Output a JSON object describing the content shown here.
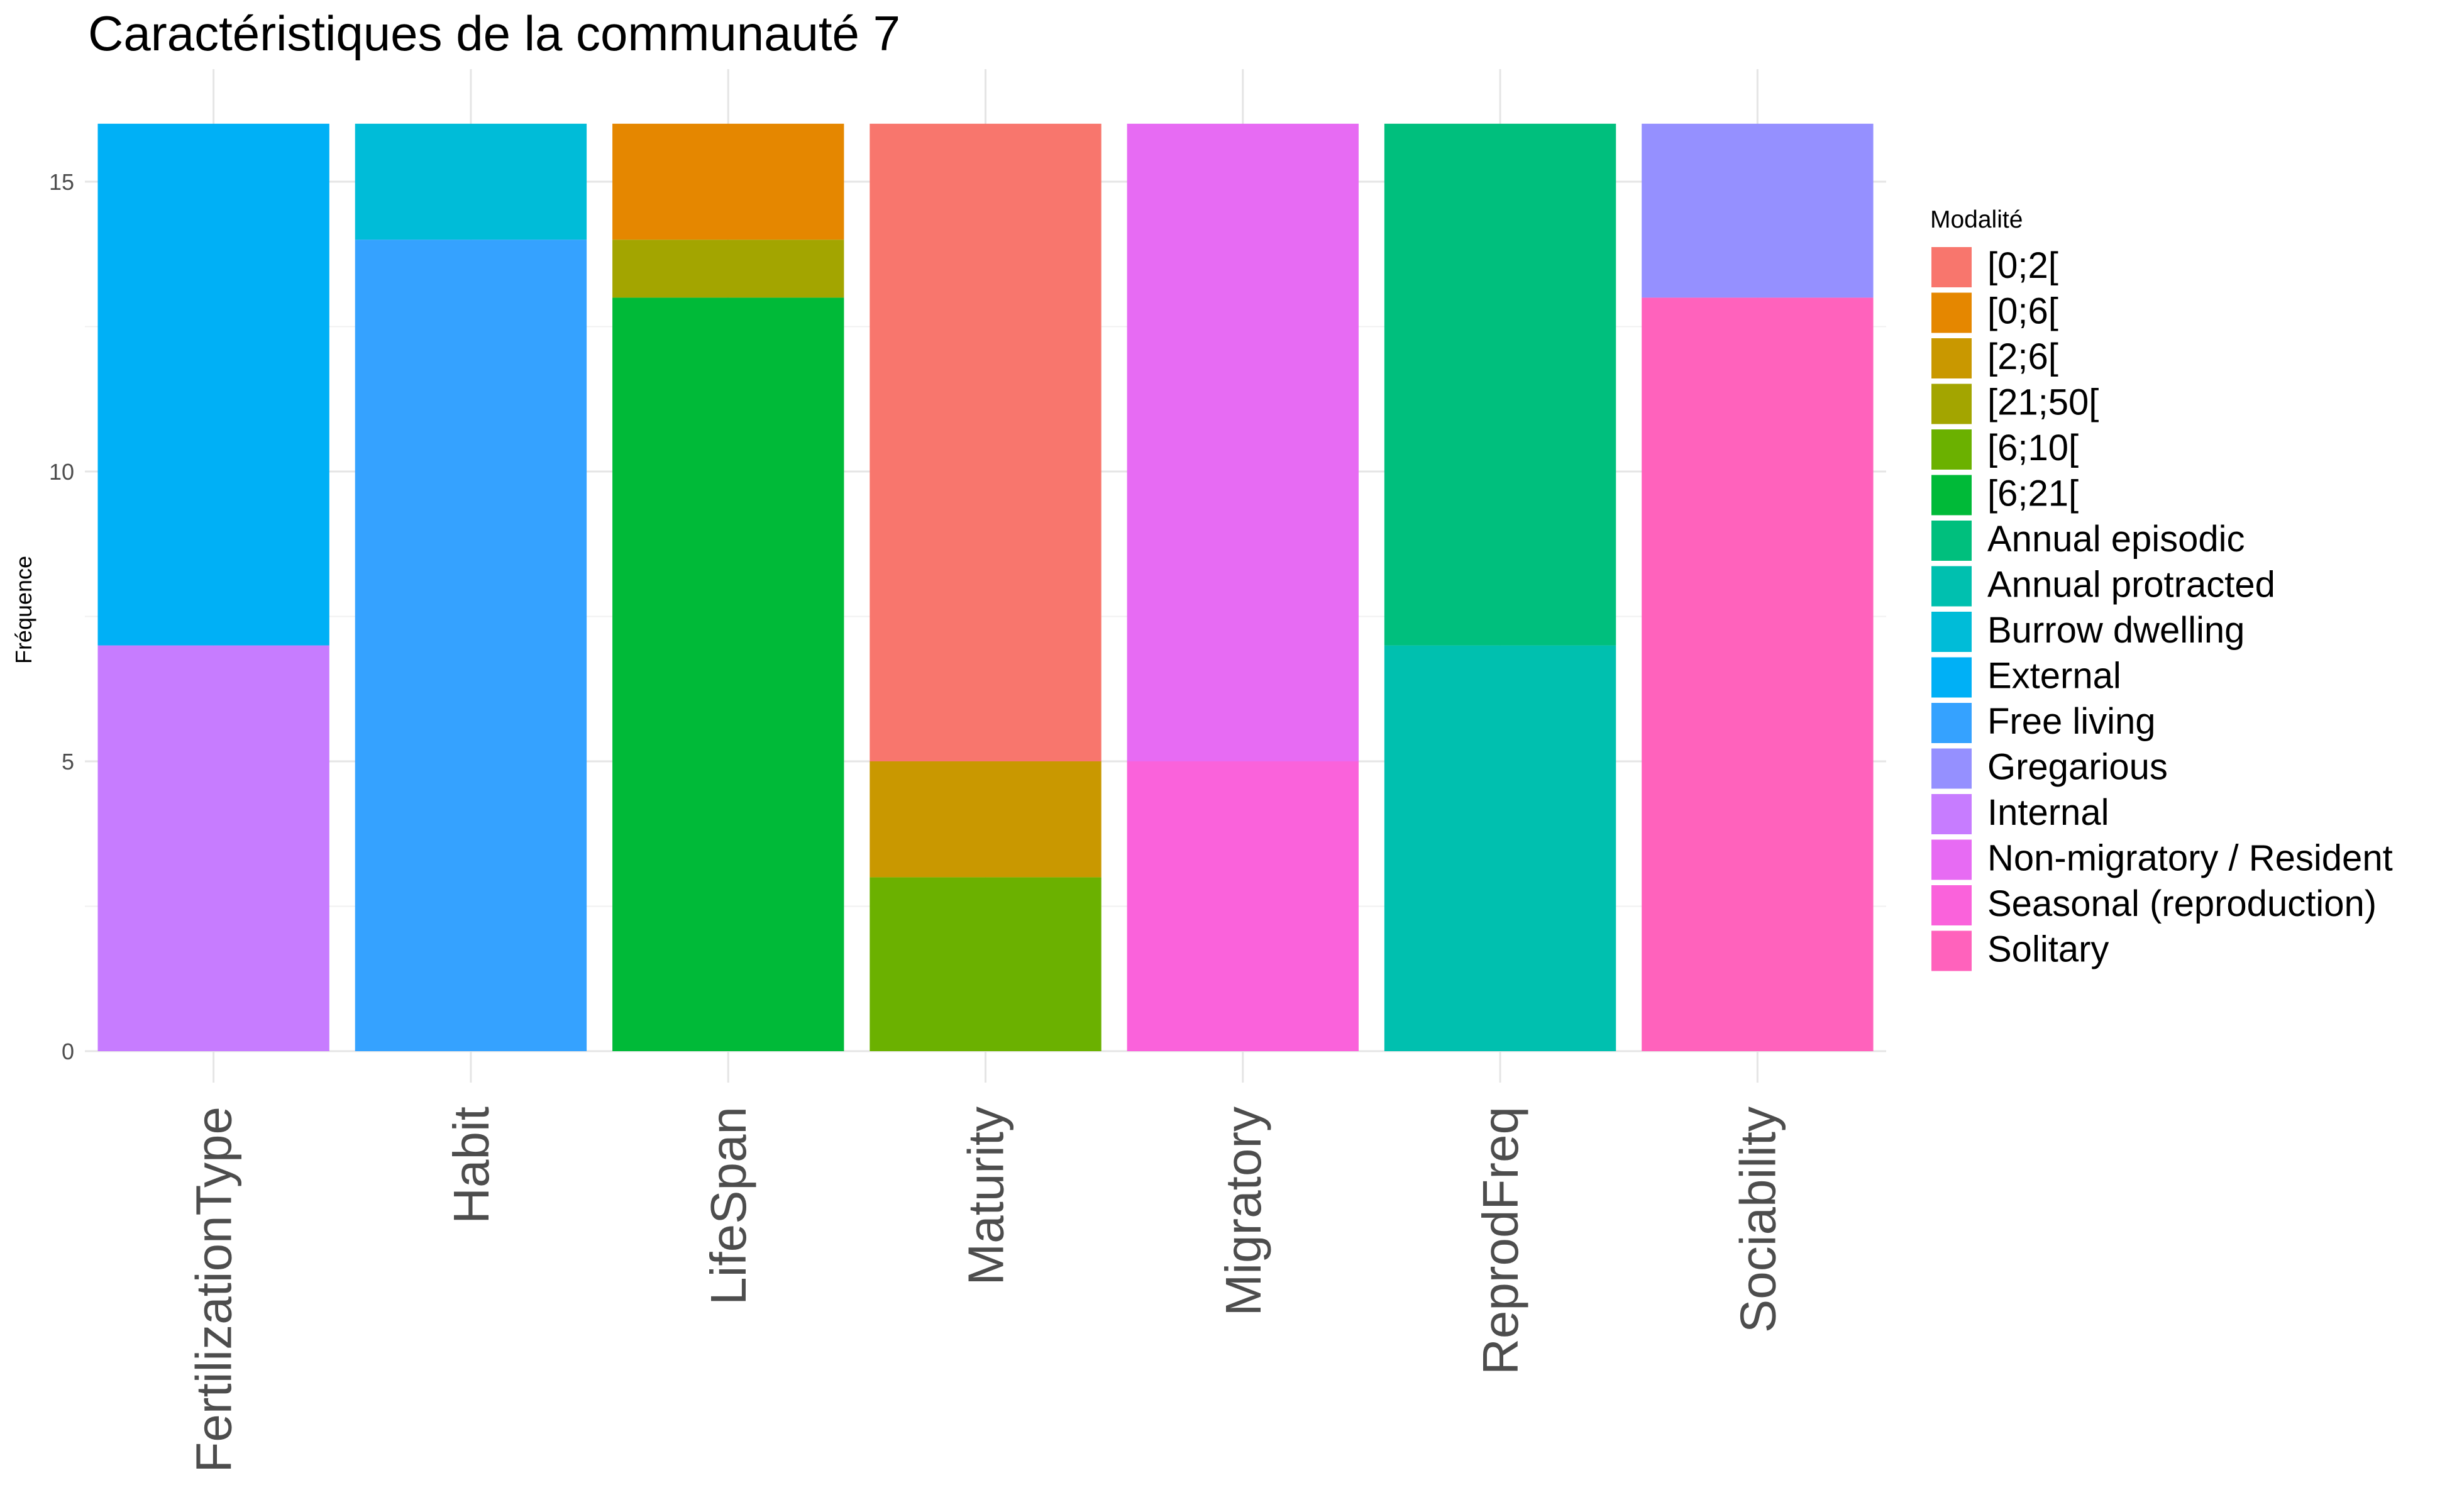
{
  "chart_data": {
    "type": "bar",
    "stacked": true,
    "title": "Caractéristiques de la communauté 7",
    "xlabel": "",
    "ylabel": "Fréquence",
    "ylim": [
      0,
      16
    ],
    "y_ticks": [
      0,
      5,
      10,
      15
    ],
    "grid": true,
    "legend_title": "Modalité",
    "legend_position": "right",
    "categories": [
      "FertilizationType",
      "Habit",
      "LifeSpan",
      "Maturity",
      "Migratory",
      "ReprodFreq",
      "Sociability"
    ],
    "legend": [
      {
        "name": "[0;2[",
        "color": "#F8766D"
      },
      {
        "name": "[0;6[",
        "color": "#E58700"
      },
      {
        "name": "[2;6[",
        "color": "#C99800"
      },
      {
        "name": "[21;50[",
        "color": "#A3A500"
      },
      {
        "name": "[6;10[",
        "color": "#6BB100"
      },
      {
        "name": "[6;21[",
        "color": "#00BA38"
      },
      {
        "name": "Annual episodic",
        "color": "#00BF7D"
      },
      {
        "name": "Annual protracted",
        "color": "#00C0AF"
      },
      {
        "name": "Burrow dwelling",
        "color": "#00BCD8"
      },
      {
        "name": "External",
        "color": "#00B0F6"
      },
      {
        "name": "Free living",
        "color": "#35A2FF"
      },
      {
        "name": "Gregarious",
        "color": "#9590FF"
      },
      {
        "name": "Internal",
        "color": "#C77CFF"
      },
      {
        "name": "Non-migratory / Resident",
        "color": "#E76BF3"
      },
      {
        "name": "Seasonal (reproduction)",
        "color": "#FA62DB"
      },
      {
        "name": "Solitary",
        "color": "#FF62BC"
      }
    ],
    "bars": [
      {
        "category": "FertilizationType",
        "segments": [
          {
            "name": "Internal",
            "value": 7
          },
          {
            "name": "External",
            "value": 9
          }
        ]
      },
      {
        "category": "Habit",
        "segments": [
          {
            "name": "Free living",
            "value": 14
          },
          {
            "name": "Burrow dwelling",
            "value": 2
          }
        ]
      },
      {
        "category": "LifeSpan",
        "segments": [
          {
            "name": "[6;21[",
            "value": 13
          },
          {
            "name": "[21;50[",
            "value": 1
          },
          {
            "name": "[0;6[",
            "value": 2
          }
        ]
      },
      {
        "category": "Maturity",
        "segments": [
          {
            "name": "[6;10[",
            "value": 3
          },
          {
            "name": "[2;6[",
            "value": 2
          },
          {
            "name": "[0;2[",
            "value": 11
          }
        ]
      },
      {
        "category": "Migratory",
        "segments": [
          {
            "name": "Seasonal (reproduction)",
            "value": 5
          },
          {
            "name": "Non-migratory / Resident",
            "value": 11
          }
        ]
      },
      {
        "category": "ReprodFreq",
        "segments": [
          {
            "name": "Annual protracted",
            "value": 7
          },
          {
            "name": "Annual episodic",
            "value": 9
          }
        ]
      },
      {
        "category": "Sociability",
        "segments": [
          {
            "name": "Solitary",
            "value": 13
          },
          {
            "name": "Gregarious",
            "value": 3
          }
        ]
      }
    ]
  }
}
